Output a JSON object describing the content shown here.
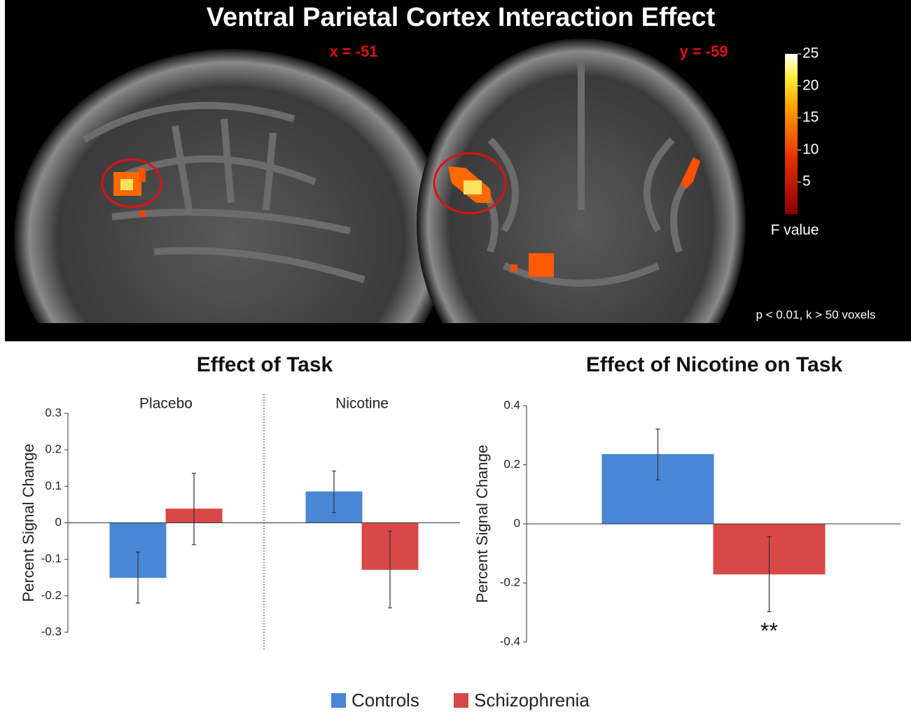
{
  "figure": {
    "title": "Ventral Parietal Cortex Interaction Effect",
    "slice_labels": [
      "x = -51",
      "y = -59"
    ],
    "colorbar": {
      "label": "F value",
      "lim": [
        0,
        25
      ],
      "ticks": [
        5,
        10,
        15,
        20,
        25
      ]
    },
    "note": "p < 0.01, k > 50 voxels"
  },
  "chart_data": [
    {
      "type": "bar",
      "title": "Effect of Task",
      "ylabel": "Percent Signal Change",
      "categories": [
        "Placebo",
        "Nicotine"
      ],
      "ylim": [
        -0.3,
        0.3
      ],
      "yticks": [
        -0.3,
        -0.2,
        -0.1,
        0,
        0.1,
        0.2,
        0.3
      ],
      "series": [
        {
          "name": "Controls",
          "color": "#4a86d6",
          "values": [
            -0.15,
            0.085
          ],
          "errors": [
            0.07,
            0.057
          ]
        },
        {
          "name": "Schizophrenia",
          "color": "#d94848",
          "values": [
            0.038,
            -0.128
          ],
          "errors": [
            0.098,
            0.105
          ]
        }
      ]
    },
    {
      "type": "bar",
      "title": "Effect of Nicotine on Task",
      "ylabel": "Percent Signal Change",
      "categories": [
        null
      ],
      "ylim": [
        -0.4,
        0.4
      ],
      "yticks": [
        -0.4,
        -0.2,
        0,
        0.2,
        0.4
      ],
      "series": [
        {
          "color": "#4a86d6",
          "values": [
            0.235
          ],
          "errors": [
            0.086
          ]
        },
        {
          "color": "#d94848",
          "values": [
            -0.17
          ],
          "errors": [
            0.127
          ],
          "annotations": [
            "**"
          ]
        }
      ]
    }
  ]
}
